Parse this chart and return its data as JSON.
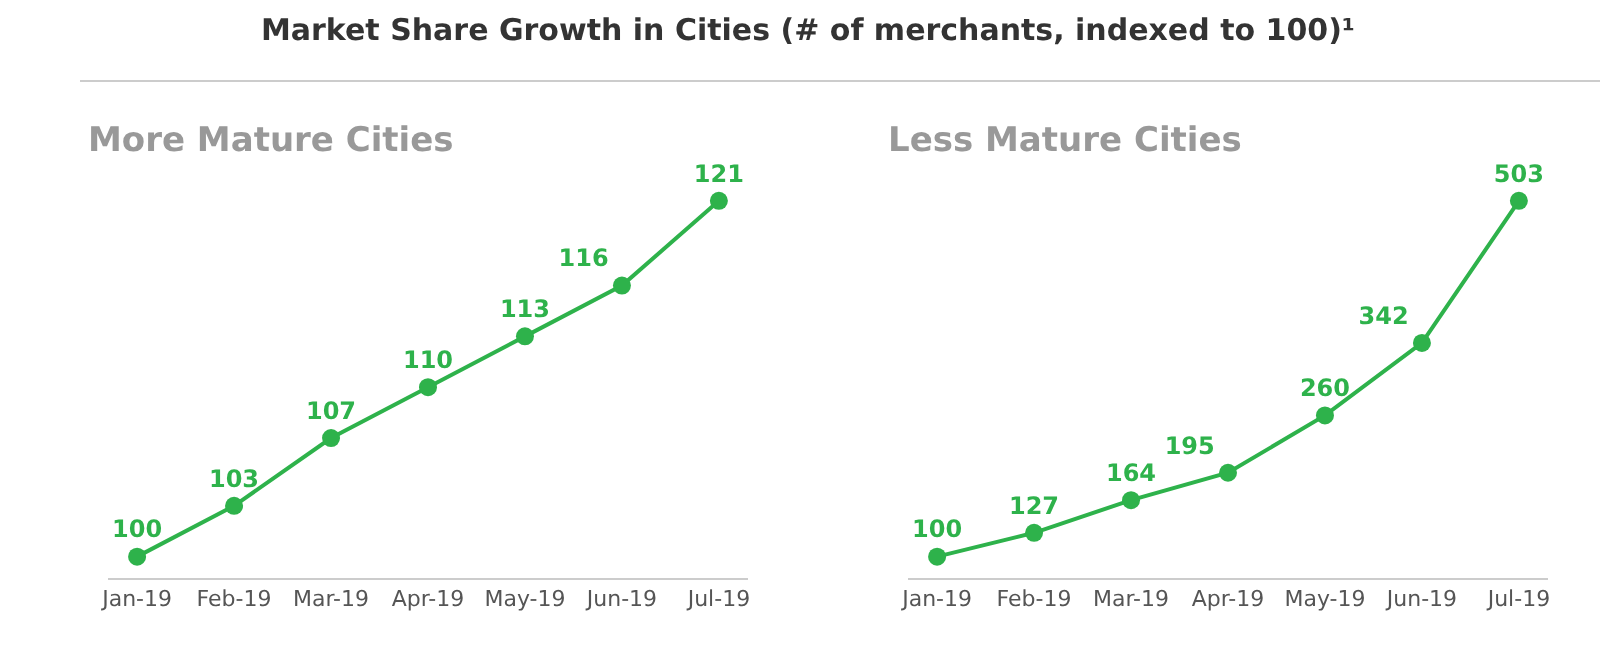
{
  "chart_data": [
    {
      "type": "line",
      "title": "Market Share Growth in Cities (# of merchants, indexed to 100)¹",
      "subtitle": "More Mature Cities",
      "categories": [
        "Jan-19",
        "Feb-19",
        "Mar-19",
        "Apr-19",
        "May-19",
        "Jun-19",
        "Jul-19"
      ],
      "values": [
        100,
        103,
        107,
        110,
        113,
        116,
        121
      ],
      "color": "#2eb24b",
      "data_labels": true,
      "marker": "circle"
    },
    {
      "type": "line",
      "title": "Less Mature Cities",
      "categories": [
        "Jan-19",
        "Feb-19",
        "Mar-19",
        "Apr-19",
        "May-19",
        "Jun-19",
        "Jul-19"
      ],
      "values": [
        100,
        127,
        164,
        195,
        260,
        342,
        503
      ],
      "color": "#2eb24b",
      "data_labels": true,
      "marker": "circle"
    }
  ]
}
